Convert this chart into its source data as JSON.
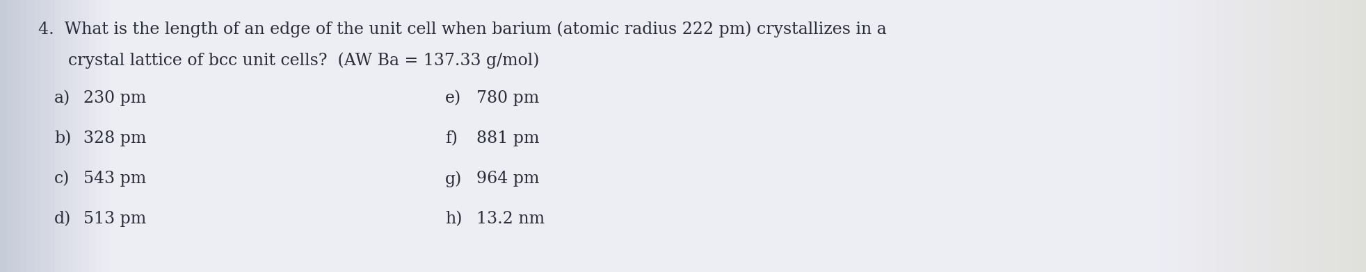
{
  "background_color": "#dde0e8",
  "background_color_center": "#eceef4",
  "question_number": "4.",
  "question_line1": "What is the length of an edge of the unit cell when barium (atomic radius 222 pm) crystallizes in a",
  "question_line2": "crystal lattice of bcc unit cells?  (AW Ba = 137.33 g/mol)",
  "options_left": [
    {
      "label": "a)",
      "text": "230 pm"
    },
    {
      "label": "b)",
      "text": "328 pm"
    },
    {
      "label": "c)",
      "text": "543 pm"
    },
    {
      "label": "d)",
      "text": "513 pm"
    }
  ],
  "options_right": [
    {
      "label": "e)",
      "text": "780 pm"
    },
    {
      "label": "f)",
      "text": "881 pm"
    },
    {
      "label": "g)",
      "text": "964 pm"
    },
    {
      "label": "h)",
      "text": "13.2 nm"
    }
  ],
  "font_size_question": 17,
  "font_size_options": 17,
  "text_color": "#2a2d3a",
  "font_family": "DejaVu Serif"
}
